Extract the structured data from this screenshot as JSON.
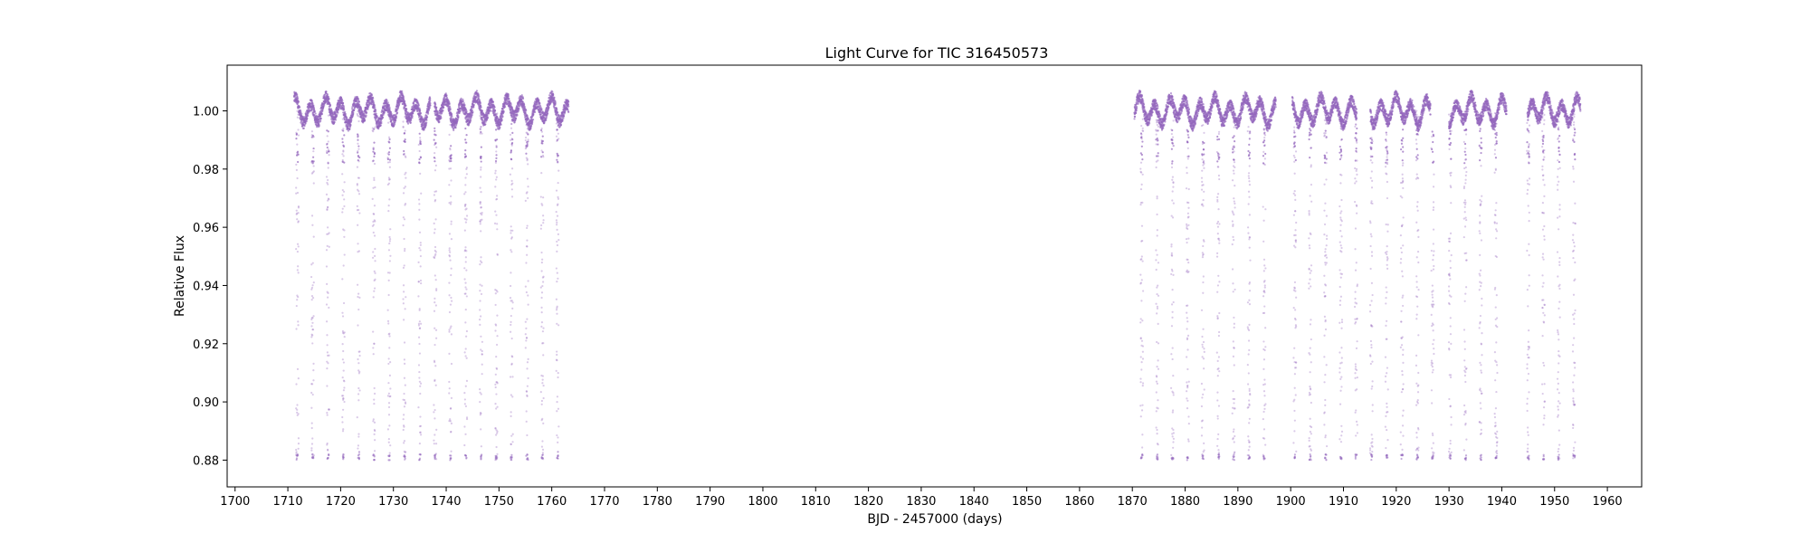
{
  "chart_data": {
    "type": "scatter",
    "title": "Light Curve for TIC 316450573",
    "xlabel": "BJD - 2457000 (days)",
    "ylabel": "Relative Flux",
    "xlim": [
      1698.5,
      1966.5
    ],
    "ylim": [
      0.8708,
      1.0157
    ],
    "x_ticks": [
      1700,
      1710,
      1720,
      1730,
      1740,
      1750,
      1760,
      1770,
      1780,
      1790,
      1800,
      1810,
      1820,
      1830,
      1840,
      1850,
      1860,
      1870,
      1880,
      1890,
      1900,
      1910,
      1920,
      1930,
      1940,
      1950,
      1960
    ],
    "y_ticks": [
      0.88,
      0.9,
      0.92,
      0.94,
      0.96,
      0.98,
      1.0
    ],
    "y_tick_labels": [
      "0.88",
      "0.90",
      "0.92",
      "0.94",
      "0.96",
      "0.98",
      "1.00"
    ],
    "grid": false,
    "marker_color": "#9467bd",
    "series": [
      {
        "segments": [
          [
            1711.2,
            1737.0
          ],
          [
            1737.8,
            1763.2
          ],
          [
            1870.4,
            1897.2
          ],
          [
            1900.3,
            1912.5
          ],
          [
            1915.1,
            1926.5
          ],
          [
            1930.0,
            1940.9
          ],
          [
            1944.9,
            1954.9
          ]
        ],
        "baseline_flux": 1.0,
        "out_of_transit_scatter": 0.008,
        "transit_period_days": 2.9,
        "transit_depth_flux": 0.88,
        "transit_epochs": [
          1711.8,
          1714.7,
          1717.6,
          1720.5,
          1723.4,
          1726.3,
          1729.2,
          1732.1,
          1735.0,
          1737.9,
          1740.8,
          1743.7,
          1746.6,
          1749.5,
          1752.4,
          1755.3,
          1758.2,
          1761.1,
          1871.8,
          1874.7,
          1877.6,
          1880.5,
          1883.4,
          1886.3,
          1889.2,
          1892.1,
          1895.0,
          1900.8,
          1903.7,
          1906.6,
          1909.5,
          1912.4,
          1915.3,
          1918.2,
          1921.1,
          1924.0,
          1926.9,
          1930.2,
          1933.1,
          1936.0,
          1938.9,
          1945.0,
          1947.9,
          1950.8,
          1953.7
        ]
      }
    ]
  }
}
